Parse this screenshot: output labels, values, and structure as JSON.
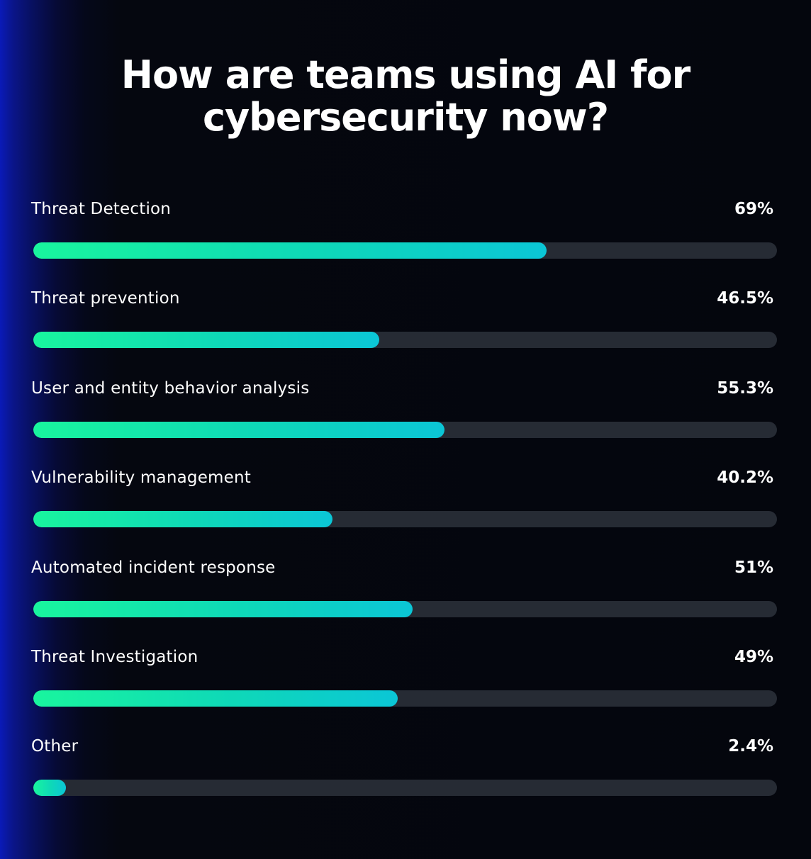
{
  "chart_data": {
    "type": "bar",
    "orientation": "horizontal",
    "title": "How are teams using AI for\ncybersecurity now?",
    "categories": [
      "Threat Detection",
      "Threat prevention",
      "User and entity behavior analysis",
      "Vulnerability management",
      "Automated incident response",
      "Threat Investigation",
      "Other"
    ],
    "values": [
      69,
      46.5,
      55.3,
      40.2,
      51,
      49,
      2.4
    ],
    "value_labels": [
      "69%",
      "46.5%",
      "55.3%",
      "40.2%",
      "51%",
      "49%",
      "2.4%"
    ],
    "xlim": [
      0,
      100
    ],
    "grid": false,
    "legend": "none",
    "colors": {
      "fill_start": "#19f59e",
      "fill_end": "#0bc6d6",
      "track": "#262b34",
      "background": "#05070f",
      "edge_glow": "#0a1ab8"
    }
  }
}
